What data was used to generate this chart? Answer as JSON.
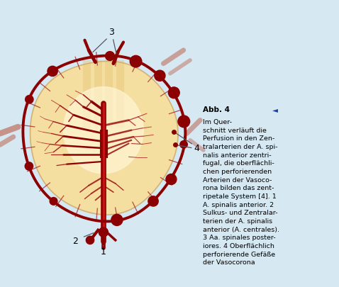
{
  "bg_color": "#d6e8f2",
  "dark_red": "#8B0000",
  "vessel_red": "#9B1010",
  "thin_red": "#AA2020",
  "cord_fill_center": "#FFF0C8",
  "cord_fill_edge": "#F0D090",
  "cord_edge": "#D4B896",
  "title_bold": "Abb. 4",
  "arrow_symbol": "◄",
  "caption": "Im Quer-\nschnitt verläuft die\nPerfusion in den Zen-\ntralarterien der A. spi-\nnalis anterior zentri-\nfugal, die oberflächli-\nchen perforierenden\nArterien der Vasoco-\nrona bilden das zent-\nripetale System [4]. 1\nA. spinalis anterior. 2\nSulkus- und Zentralar-\nterien der A. spinalis\nanterior (A. centrales).\n3 Aa. spinales poster-\niores. 4 Oberflächlich\nperforierende Gefäße\nder Vasocorona"
}
